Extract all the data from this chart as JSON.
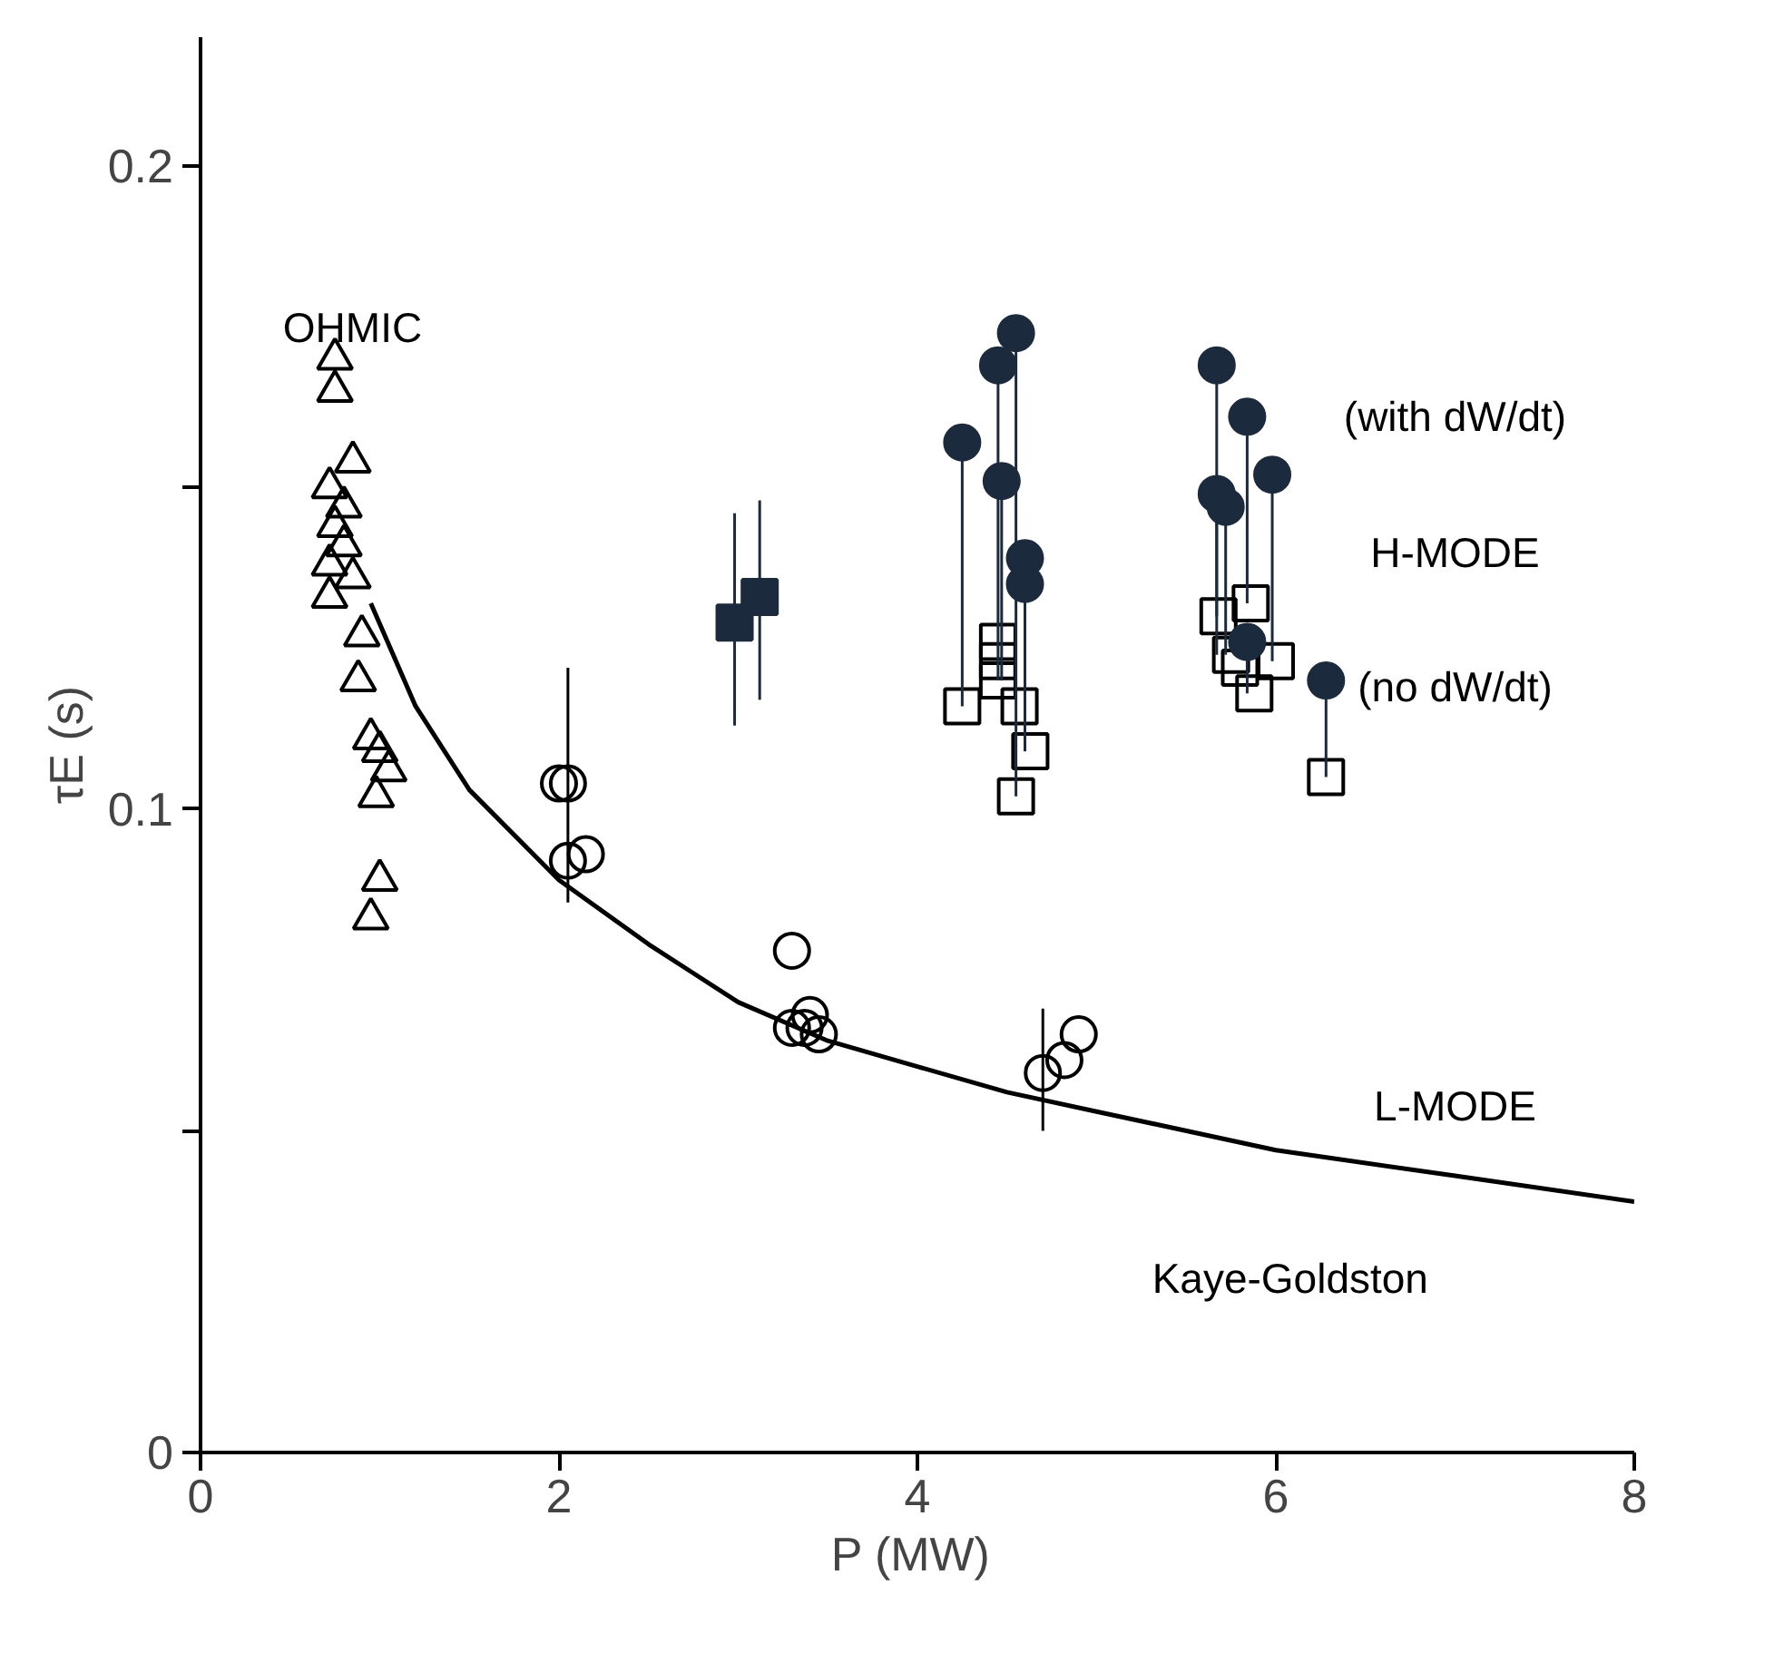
{
  "chart_data": {
    "type": "scatter",
    "xlabel": "P  (MW)",
    "ylabel": "τE (s)",
    "xlim": [
      0,
      8
    ],
    "ylim": [
      0,
      0.22
    ],
    "xticks": [
      0,
      2,
      4,
      6,
      8
    ],
    "yticks": [
      {
        "value": 0,
        "label": "0"
      },
      {
        "value": 0.05,
        "label": null
      },
      {
        "value": 0.1,
        "label": "0.1"
      },
      {
        "value": 0.15,
        "label": null
      },
      {
        "value": 0.2,
        "label": "0.2"
      }
    ],
    "grid": false,
    "series": [
      {
        "marker": "triangle",
        "color": "#000000",
        "x": [
          0.75,
          0.75,
          0.85,
          0.72,
          0.8,
          0.75,
          0.8,
          0.72,
          0.85,
          0.72,
          0.9,
          0.88,
          0.95,
          1.0,
          1.05,
          0.98,
          1.0,
          0.95
        ],
        "values": [
          0.17,
          0.165,
          0.154,
          0.15,
          0.147,
          0.144,
          0.141,
          0.138,
          0.136,
          0.133,
          0.127,
          0.12,
          0.111,
          0.109,
          0.106,
          0.102,
          0.089,
          0.083
        ]
      },
      {
        "marker": "circle",
        "color": "#000000",
        "x": [
          2.0,
          2.05,
          2.05,
          2.15,
          3.3,
          3.3,
          3.4,
          3.45,
          3.37,
          4.7,
          4.82,
          4.9
        ],
        "values": [
          0.104,
          0.104,
          0.092,
          0.093,
          0.078,
          0.066,
          0.068,
          0.065,
          0.066,
          0.059,
          0.061,
          0.065
        ],
        "errors": [
          null,
          [
            0.0855,
            0.122
          ],
          null,
          null,
          null,
          null,
          null,
          null,
          null,
          [
            0.05,
            0.069
          ],
          null,
          null
        ]
      },
      {
        "marker": "square",
        "color": "#1c2a3e",
        "x": [
          2.98,
          3.12
        ],
        "values": [
          0.129,
          0.133
        ],
        "errors": [
          [
            0.113,
            0.146
          ],
          [
            0.117,
            0.148
          ]
        ]
      },
      {
        "marker": "square",
        "color": "#000000",
        "x": [
          4.25,
          4.45,
          4.45,
          4.45,
          4.57,
          4.63,
          4.55,
          5.68,
          5.86,
          5.75,
          5.8,
          5.88,
          6.0,
          6.28
        ],
        "values": [
          0.116,
          0.126,
          0.123,
          0.12,
          0.116,
          0.109,
          0.102,
          0.13,
          0.132,
          0.124,
          0.122,
          0.118,
          0.123,
          0.105
        ]
      },
      {
        "marker": "circle",
        "color": "#1c2a3e",
        "x": [
          4.25,
          4.45,
          4.55,
          4.47,
          4.6,
          4.6,
          5.67,
          5.84,
          5.98,
          5.67,
          5.72,
          5.84,
          6.28
        ],
        "values": [
          0.157,
          0.169,
          0.174,
          0.151,
          0.139,
          0.135,
          0.169,
          0.161,
          0.152,
          0.149,
          0.147,
          0.126,
          0.12
        ],
        "errors": [
          [
            0.116,
            0.157
          ],
          [
            0.12,
            0.169
          ],
          [
            0.102,
            0.174
          ],
          [
            0.12,
            0.151
          ],
          [
            0.109,
            0.139
          ],
          [
            0.109,
            0.135
          ],
          [
            0.13,
            0.169
          ],
          [
            0.132,
            0.161
          ],
          [
            0.123,
            0.152
          ],
          [
            0.124,
            0.149
          ],
          [
            0.124,
            0.147
          ],
          [
            0.118,
            0.126
          ],
          [
            0.105,
            0.12
          ]
        ]
      },
      {
        "type": "line",
        "marker": "none",
        "line_style": "solid",
        "color": "#000000",
        "x": [
          0.95,
          1.2,
          1.5,
          2,
          2.5,
          3,
          3.5,
          4,
          4.5,
          5,
          6,
          7,
          8
        ],
        "values": [
          0.132,
          0.116,
          0.103,
          0.089,
          0.079,
          0.07,
          0.064,
          0.06,
          0.056,
          0.053,
          0.047,
          0.043,
          0.039
        ]
      }
    ],
    "annotations": [
      "OHMIC",
      "(with dW/dt)",
      "H-MODE",
      "(no dW/dt)",
      "L-MODE",
      "Kaye-Goldston"
    ]
  }
}
